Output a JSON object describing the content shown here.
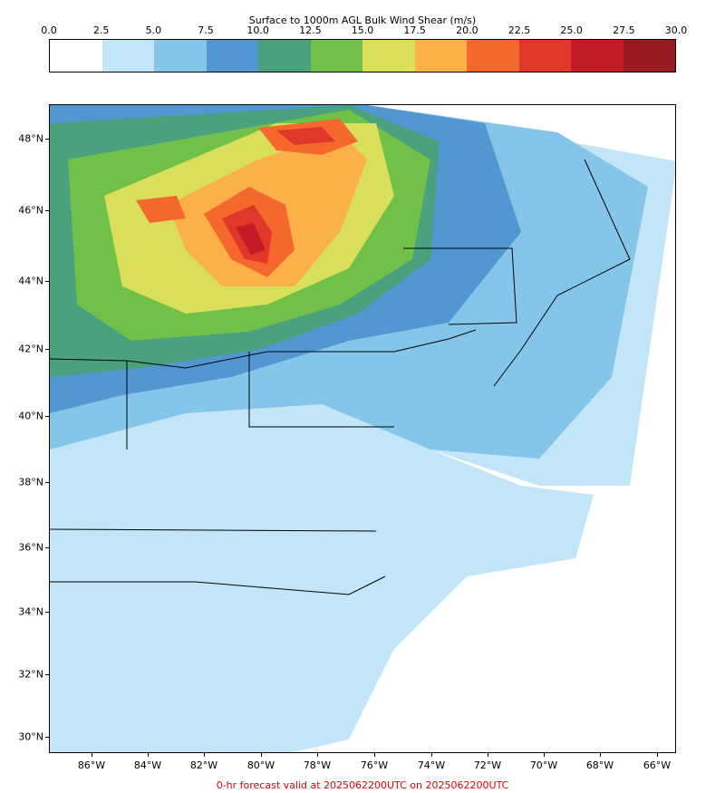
{
  "colorbar": {
    "title": "Surface to 1000m AGL Bulk Wind Shear (m/s)",
    "ticks": [
      "0.0",
      "2.5",
      "5.0",
      "7.5",
      "10.0",
      "12.5",
      "15.0",
      "17.5",
      "20.0",
      "22.5",
      "25.0",
      "27.5",
      "30.0"
    ],
    "colors": [
      "#ffffff",
      "#c2e6f8",
      "#86c5ea",
      "#5297d1",
      "#4aa17d",
      "#71c04a",
      "#dadf5a",
      "#fbb048",
      "#f5682d",
      "#e0372b",
      "#c21c26",
      "#981b1f"
    ]
  },
  "map": {
    "lat_labels": [
      "48°N",
      "46°N",
      "44°N",
      "42°N",
      "40°N",
      "38°N",
      "36°N",
      "34°N",
      "32°N",
      "30°N"
    ],
    "lon_labels": [
      "86°W",
      "84°W",
      "82°W",
      "80°W",
      "78°W",
      "76°W",
      "74°W",
      "72°W",
      "70°W",
      "68°W",
      "66°W"
    ]
  },
  "footer": "0-hr forecast valid at 2025062200UTC on 2025062200UTC"
}
